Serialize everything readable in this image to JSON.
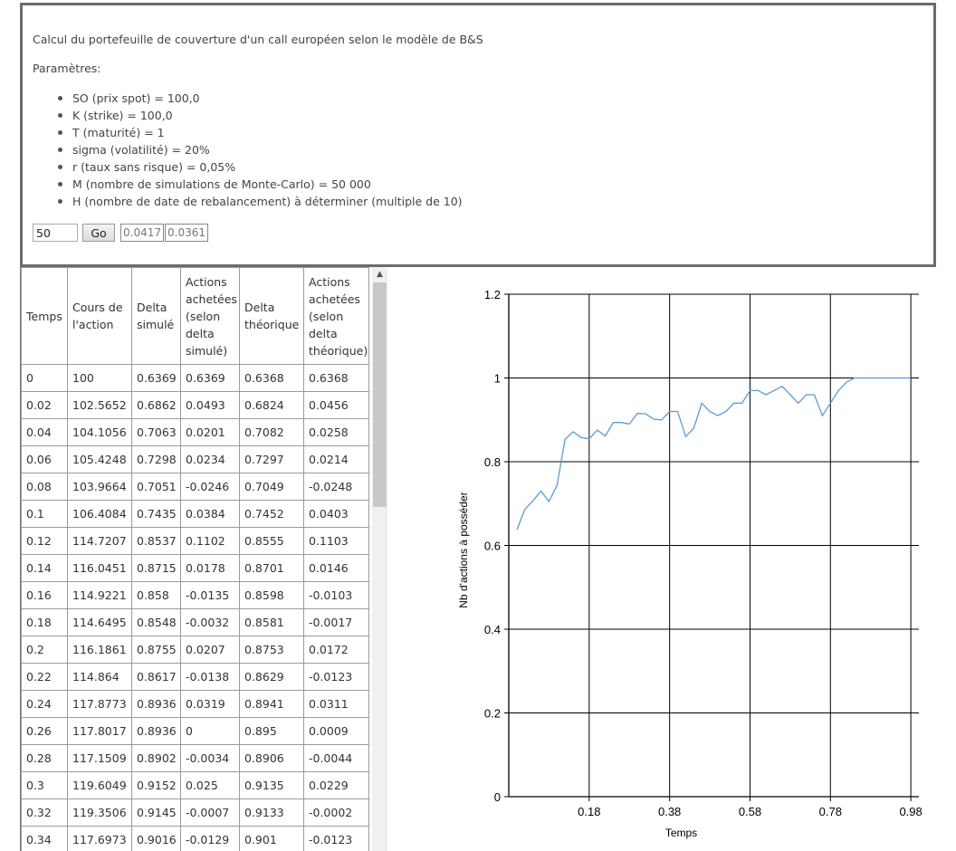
{
  "panel": {
    "title": "Calcul du portefeuille de couverture d'un call européen selon le modèle de B&S",
    "params_label": "Paramètres:",
    "params": [
      "SO (prix spot) = 100,0",
      "K (strike) = 100,0",
      "T (maturité) = 1",
      "sigma (volatilité) = 20%",
      "r (taux sans risque) = 0,05%",
      "M (nombre de simulations de Monte-Carlo) = 50 000",
      "H (nombre de date de rebalancement) à déterminer (multiple de 10)"
    ],
    "h_value": "50",
    "go_label": "Go",
    "output1": "0.0417",
    "output2": "0.0361"
  },
  "table": {
    "headers": [
      "Temps",
      "Cours de l'action",
      "Delta simulé",
      "Actions achetées (selon delta simulé)",
      "Delta théorique",
      "Actions achetées (selon delta théorique)"
    ],
    "rows": [
      [
        "0",
        "100",
        "0.6369",
        "0.6369",
        "0.6368",
        "0.6368"
      ],
      [
        "0.02",
        "102.5652",
        "0.6862",
        "0.0493",
        "0.6824",
        "0.0456"
      ],
      [
        "0.04",
        "104.1056",
        "0.7063",
        "0.0201",
        "0.7082",
        "0.0258"
      ],
      [
        "0.06",
        "105.4248",
        "0.7298",
        "0.0234",
        "0.7297",
        "0.0214"
      ],
      [
        "0.08",
        "103.9664",
        "0.7051",
        "-0.0246",
        "0.7049",
        "-0.0248"
      ],
      [
        "0.1",
        "106.4084",
        "0.7435",
        "0.0384",
        "0.7452",
        "0.0403"
      ],
      [
        "0.12",
        "114.7207",
        "0.8537",
        "0.1102",
        "0.8555",
        "0.1103"
      ],
      [
        "0.14",
        "116.0451",
        "0.8715",
        "0.0178",
        "0.8701",
        "0.0146"
      ],
      [
        "0.16",
        "114.9221",
        "0.858",
        "-0.0135",
        "0.8598",
        "-0.0103"
      ],
      [
        "0.18",
        "114.6495",
        "0.8548",
        "-0.0032",
        "0.8581",
        "-0.0017"
      ],
      [
        "0.2",
        "116.1861",
        "0.8755",
        "0.0207",
        "0.8753",
        "0.0172"
      ],
      [
        "0.22",
        "114.864",
        "0.8617",
        "-0.0138",
        "0.8629",
        "-0.0123"
      ],
      [
        "0.24",
        "117.8773",
        "0.8936",
        "0.0319",
        "0.8941",
        "0.0311"
      ],
      [
        "0.26",
        "117.8017",
        "0.8936",
        "0",
        "0.895",
        "0.0009"
      ],
      [
        "0.28",
        "117.1509",
        "0.8902",
        "-0.0034",
        "0.8906",
        "-0.0044"
      ],
      [
        "0.3",
        "119.6049",
        "0.9152",
        "0.025",
        "0.9135",
        "0.0229"
      ],
      [
        "0.32",
        "119.3506",
        "0.9145",
        "-0.0007",
        "0.9133",
        "-0.0002"
      ],
      [
        "0.34",
        "117.6973",
        "0.9016",
        "-0.0129",
        "0.901",
        "-0.0123"
      ]
    ]
  },
  "chart_data": {
    "type": "line",
    "title": "",
    "xlabel": "Temps",
    "ylabel": "Nb d'actions à posséder",
    "xlim": [
      -0.02,
      1.0
    ],
    "ylim": [
      0,
      1.2
    ],
    "x_ticks": [
      0.18,
      0.38,
      0.58,
      0.78,
      0.98
    ],
    "x_tick_labels": [
      "0.18",
      "0.38",
      "0.58",
      "0.78",
      "0.98"
    ],
    "y_ticks": [
      0,
      0.2,
      0.4,
      0.6,
      0.8,
      1,
      1.2
    ],
    "y_tick_labels": [
      "0",
      "0.2",
      "0.4",
      "0.6",
      "0.8",
      "1",
      "1.2"
    ],
    "grid": true,
    "line_color": "#5b9bd5",
    "series": [
      {
        "x": [
          0,
          0.02,
          0.04,
          0.06,
          0.08,
          0.1,
          0.12,
          0.14,
          0.16,
          0.18,
          0.2,
          0.22,
          0.24,
          0.26,
          0.28,
          0.3,
          0.32,
          0.34,
          0.36,
          0.38,
          0.4,
          0.42,
          0.44,
          0.46,
          0.48,
          0.5,
          0.52,
          0.54,
          0.56,
          0.58,
          0.6,
          0.62,
          0.64,
          0.66,
          0.68,
          0.7,
          0.72,
          0.74,
          0.76,
          0.78,
          0.8,
          0.82,
          0.84,
          0.86,
          0.88,
          0.9,
          0.92,
          0.94,
          0.96,
          0.98
        ],
        "y": [
          0.6369,
          0.6862,
          0.7063,
          0.7298,
          0.7051,
          0.7435,
          0.8537,
          0.8715,
          0.858,
          0.8548,
          0.8755,
          0.8617,
          0.8936,
          0.8936,
          0.8902,
          0.9152,
          0.9145,
          0.9016,
          0.9,
          0.92,
          0.92,
          0.86,
          0.88,
          0.94,
          0.92,
          0.91,
          0.92,
          0.94,
          0.94,
          0.97,
          0.97,
          0.96,
          0.97,
          0.98,
          0.96,
          0.94,
          0.96,
          0.96,
          0.91,
          0.94,
          0.97,
          0.99,
          1,
          1,
          1,
          1,
          1,
          1,
          1,
          1
        ]
      }
    ]
  }
}
